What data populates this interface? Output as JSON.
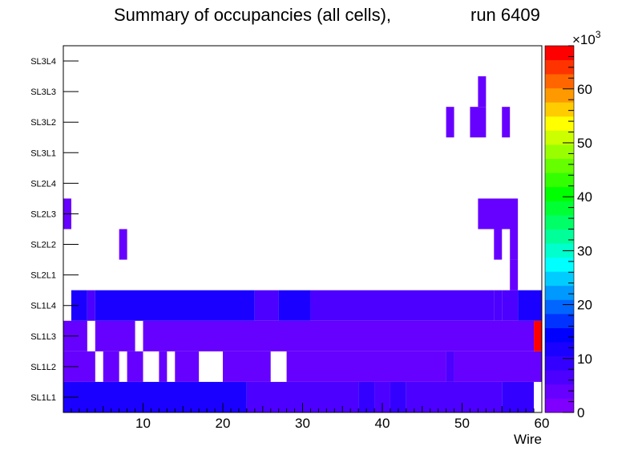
{
  "chart_data": {
    "type": "heatmap",
    "title_left": "Summary of occupancies (all cells),",
    "title_right": "run 6409",
    "xlabel": "Wire",
    "x_range": [
      0,
      60
    ],
    "x_ticks": [
      "10",
      "20",
      "30",
      "40",
      "50",
      "60"
    ],
    "y_labels": [
      "SL1L1",
      "SL1L2",
      "SL1L3",
      "SL1L4",
      "SL2L1",
      "SL2L2",
      "SL2L3",
      "SL2L4",
      "SL3L1",
      "SL3L2",
      "SL3L3",
      "SL3L4"
    ],
    "z_range": [
      0,
      68000
    ],
    "z_multiplier_label": "×10",
    "z_multiplier_exp": "3",
    "z_ticks": [
      "0",
      "10",
      "20",
      "30",
      "40",
      "50",
      "60"
    ],
    "palette": [
      "#7f00ff",
      "#6600ff",
      "#4c00ff",
      "#3300ff",
      "#1a00ff",
      "#0000ff",
      "#0033ff",
      "#0066ff",
      "#0099ff",
      "#00ccff",
      "#00ffff",
      "#00ffcc",
      "#00ff99",
      "#00ff66",
      "#00ff33",
      "#00ff00",
      "#33ff00",
      "#66ff00",
      "#99ff00",
      "#ccff00",
      "#ffff00",
      "#ffcc00",
      "#ff9900",
      "#ff6600",
      "#ff3300",
      "#ff0000"
    ],
    "cells": [
      {
        "row": "SL1L1",
        "x_from": 0,
        "x_to": 23,
        "value": 10500
      },
      {
        "row": "SL1L1",
        "x_from": 23,
        "x_to": 37,
        "value": 7500
      },
      {
        "row": "SL1L1",
        "x_from": 37,
        "x_to": 39,
        "value": 10000
      },
      {
        "row": "SL1L1",
        "x_from": 39,
        "x_to": 41,
        "value": 7000
      },
      {
        "row": "SL1L1",
        "x_from": 41,
        "x_to": 43,
        "value": 10000
      },
      {
        "row": "SL1L1",
        "x_from": 43,
        "x_to": 55,
        "value": 7000
      },
      {
        "row": "SL1L1",
        "x_from": 55,
        "x_to": 59,
        "value": 10000
      },
      {
        "row": "SL1L2",
        "x_from": 0,
        "x_to": 4,
        "value": 5000
      },
      {
        "row": "SL1L2",
        "x_from": 5,
        "x_to": 7,
        "value": 5000
      },
      {
        "row": "SL1L2",
        "x_from": 8,
        "x_to": 10,
        "value": 5000
      },
      {
        "row": "SL1L2",
        "x_from": 12,
        "x_to": 13,
        "value": 5000
      },
      {
        "row": "SL1L2",
        "x_from": 14,
        "x_to": 17,
        "value": 5000
      },
      {
        "row": "SL1L2",
        "x_from": 20,
        "x_to": 26,
        "value": 5000
      },
      {
        "row": "SL1L2",
        "x_from": 28,
        "x_to": 48,
        "value": 5000
      },
      {
        "row": "SL1L2",
        "x_from": 48,
        "x_to": 49,
        "value": 7000
      },
      {
        "row": "SL1L2",
        "x_from": 49,
        "x_to": 60,
        "value": 5000
      },
      {
        "row": "SL1L3",
        "x_from": 0,
        "x_to": 3,
        "value": 5000
      },
      {
        "row": "SL1L3",
        "x_from": 4,
        "x_to": 9,
        "value": 5000
      },
      {
        "row": "SL1L3",
        "x_from": 10,
        "x_to": 59,
        "value": 5000
      },
      {
        "row": "SL1L3",
        "x_from": 59,
        "x_to": 60,
        "value": 67000
      },
      {
        "row": "SL1L4",
        "x_from": 1,
        "x_to": 3,
        "value": 10500
      },
      {
        "row": "SL1L4",
        "x_from": 3,
        "x_to": 4,
        "value": 6500
      },
      {
        "row": "SL1L4",
        "x_from": 4,
        "x_to": 24,
        "value": 10500
      },
      {
        "row": "SL1L4",
        "x_from": 24,
        "x_to": 27,
        "value": 7500
      },
      {
        "row": "SL1L4",
        "x_from": 27,
        "x_to": 31,
        "value": 10500
      },
      {
        "row": "SL1L4",
        "x_from": 31,
        "x_to": 54,
        "value": 7500
      },
      {
        "row": "SL1L4",
        "x_from": 54,
        "x_to": 55,
        "value": 5500
      },
      {
        "row": "SL1L4",
        "x_from": 55,
        "x_to": 57,
        "value": 7500
      },
      {
        "row": "SL1L4",
        "x_from": 57,
        "x_to": 60,
        "value": 10500
      },
      {
        "row": "SL2L1",
        "x_from": 56,
        "x_to": 57,
        "value": 4000
      },
      {
        "row": "SL2L2",
        "x_from": 7,
        "x_to": 8,
        "value": 4000
      },
      {
        "row": "SL2L2",
        "x_from": 54,
        "x_to": 55,
        "value": 4000
      },
      {
        "row": "SL2L2",
        "x_from": 56,
        "x_to": 57,
        "value": 4000
      },
      {
        "row": "SL2L3",
        "x_from": 0,
        "x_to": 1,
        "value": 4000
      },
      {
        "row": "SL2L3",
        "x_from": 52,
        "x_to": 57,
        "value": 4000
      },
      {
        "row": "SL3L2",
        "x_from": 48,
        "x_to": 49,
        "value": 4000
      },
      {
        "row": "SL3L2",
        "x_from": 51,
        "x_to": 53,
        "value": 4000
      },
      {
        "row": "SL3L2",
        "x_from": 55,
        "x_to": 56,
        "value": 4000
      },
      {
        "row": "SL3L3",
        "x_from": 52,
        "x_to": 53,
        "value": 4000
      }
    ]
  }
}
